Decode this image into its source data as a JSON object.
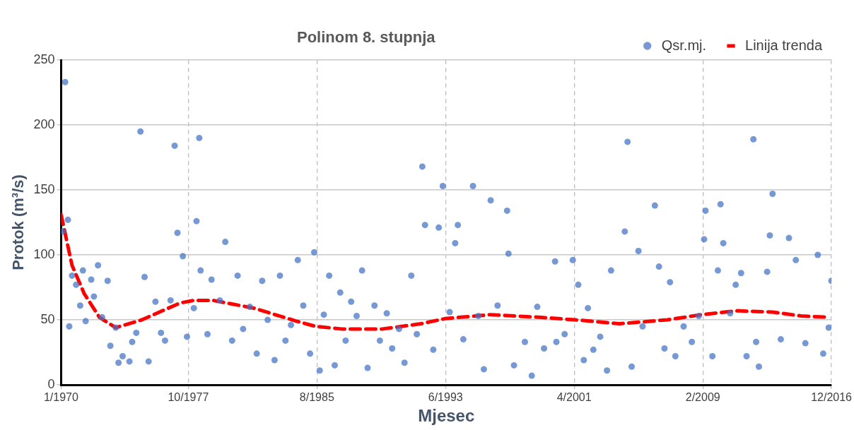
{
  "chart_data": {
    "type": "scatter",
    "title": "Polinom 8. stupnja",
    "xlabel": "Mjesec",
    "ylabel": "Protok (m³/s)",
    "xlim": [
      "1970-01",
      "2016-12"
    ],
    "xticks": [
      {
        "value": "1970-01",
        "label": "1/1970"
      },
      {
        "value": "1977-10",
        "label": "10/1977"
      },
      {
        "value": "1985-08",
        "label": "8/1985"
      },
      {
        "value": "1993-06",
        "label": "6/1993"
      },
      {
        "value": "2001-04",
        "label": "4/2001"
      },
      {
        "value": "2009-02",
        "label": "2/2009"
      },
      {
        "value": "2016-12",
        "label": "12/2016"
      }
    ],
    "ylim": [
      0,
      250
    ],
    "yticks": [
      0,
      50,
      100,
      150,
      200,
      250
    ],
    "grid": true,
    "legend": "top right",
    "series": [
      {
        "name": "Qsr.mj.",
        "type": "scatter",
        "color": "#4472c4",
        "marker": "circle",
        "x": [
          "1970-02",
          "1970-04",
          "1970-06",
          "1970-07",
          "1970-09",
          "1970-12",
          "1971-03",
          "1971-05",
          "1971-07",
          "1971-11",
          "1972-01",
          "1972-04",
          "1972-07",
          "1972-11",
          "1973-01",
          "1973-05",
          "1973-07",
          "1973-10",
          "1974-03",
          "1974-05",
          "1974-08",
          "1974-11",
          "1975-02",
          "1975-05",
          "1975-10",
          "1976-02",
          "1976-05",
          "1976-09",
          "1976-12",
          "1977-02",
          "1977-06",
          "1977-09",
          "1978-02",
          "1978-04",
          "1978-06",
          "1978-07",
          "1978-12",
          "1979-03",
          "1979-09",
          "1980-01",
          "1980-06",
          "1980-10",
          "1981-02",
          "1981-07",
          "1981-12",
          "1982-04",
          "1982-08",
          "1983-01",
          "1983-05",
          "1983-09",
          "1984-01",
          "1984-06",
          "1984-10",
          "1985-03",
          "1985-06",
          "1985-10",
          "1986-01",
          "1986-05",
          "1986-09",
          "1987-01",
          "1987-05",
          "1987-09",
          "1988-01",
          "1988-05",
          "1988-09",
          "1989-02",
          "1989-06",
          "1989-11",
          "1990-03",
          "1990-08",
          "1990-12",
          "1991-05",
          "1991-09",
          "1992-01",
          "1992-03",
          "1992-09",
          "1993-01",
          "1993-04",
          "1993-09",
          "1994-01",
          "1994-03",
          "1994-07",
          "1995-02",
          "1995-06",
          "1995-10",
          "1996-03",
          "1996-08",
          "1997-03",
          "1997-04",
          "1997-08",
          "1998-04",
          "1998-09",
          "1999-01",
          "1999-06",
          "2000-02",
          "2000-03",
          "2000-09",
          "2001-03",
          "2001-07",
          "2001-11",
          "2002-02",
          "2002-06",
          "2002-11",
          "2003-04",
          "2003-07",
          "2004-05",
          "2004-07",
          "2004-10",
          "2005-03",
          "2005-06",
          "2006-03",
          "2006-06",
          "2006-10",
          "2007-02",
          "2007-06",
          "2007-12",
          "2008-06",
          "2008-11",
          "2009-03",
          "2009-04",
          "2009-09",
          "2010-01",
          "2010-03",
          "2010-05",
          "2010-10",
          "2011-02",
          "2011-06",
          "2011-10",
          "2012-03",
          "2012-05",
          "2012-07",
          "2013-01",
          "2013-03",
          "2013-05",
          "2013-11",
          "2014-05",
          "2014-10",
          "2015-05",
          "2016-02",
          "2016-06",
          "2016-10",
          "2016-12"
        ],
        "values": [
          118,
          233,
          127,
          45,
          84,
          77,
          61,
          88,
          49,
          81,
          68,
          92,
          52,
          80,
          30,
          44,
          17,
          22,
          18,
          33,
          40,
          195,
          83,
          18,
          64,
          40,
          34,
          65,
          184,
          117,
          99,
          37,
          59,
          126,
          190,
          88,
          39,
          81,
          65,
          110,
          34,
          84,
          43,
          60,
          24,
          80,
          50,
          19,
          84,
          34,
          46,
          96,
          61,
          24,
          102,
          11,
          54,
          84,
          15,
          71,
          34,
          64,
          53,
          88,
          13,
          61,
          34,
          55,
          28,
          43,
          17,
          84,
          39,
          168,
          123,
          27,
          121,
          153,
          56,
          109,
          123,
          35,
          153,
          53,
          12,
          142,
          61,
          134,
          101,
          15,
          33,
          7,
          60,
          28,
          95,
          33,
          39,
          96,
          77,
          19,
          59,
          27,
          37,
          11,
          88,
          118,
          187,
          14,
          103,
          45,
          138,
          91,
          28,
          79,
          22,
          45,
          33,
          53,
          112,
          134,
          22,
          88,
          139,
          109,
          55,
          77,
          86,
          22,
          189,
          33,
          14,
          87,
          115,
          147,
          35,
          113,
          96,
          32,
          100,
          24,
          44,
          80
        ]
      },
      {
        "name": "Linija trenda",
        "type": "line",
        "color": "#ff0000",
        "marker": "none",
        "line_style": "dashed",
        "x": [
          "1970-01",
          "1970-09",
          "1971-06",
          "1972-05",
          "1973-05",
          "1974-12",
          "1977-04",
          "1978-02",
          "1979-04",
          "1981-10",
          "1984-05",
          "1985-07",
          "1987-02",
          "1989-08",
          "1991-12",
          "1993-06",
          "1996-03",
          "1999-02",
          "2001-05",
          "2004-01",
          "2006-12",
          "2009-01",
          "2011-03",
          "2013-05",
          "2015-02",
          "2016-09"
        ],
        "values": [
          131,
          92,
          70,
          52,
          44,
          50,
          63,
          65,
          65,
          59,
          49,
          45,
          43,
          43,
          47,
          51,
          54,
          52,
          50,
          47,
          50,
          54,
          57,
          56,
          53,
          52
        ]
      }
    ]
  }
}
